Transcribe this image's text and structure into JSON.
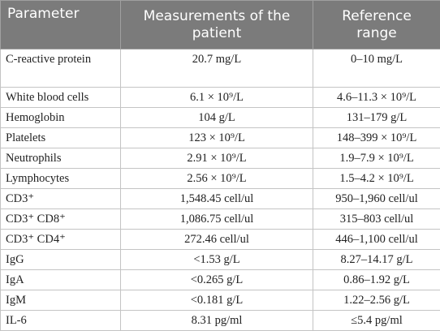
{
  "table": {
    "header": [
      "Parameter",
      "Measurements of the patient",
      "Reference range"
    ],
    "rows": [
      [
        "C-reactive protein",
        "20.7 mg/L",
        "0–10 mg/L"
      ],
      [
        "White blood cells",
        "6.1 × 10⁹/L",
        "4.6–11.3 × 10⁹/L"
      ],
      [
        "Hemoglobin",
        "104 g/L",
        "131–179 g/L"
      ],
      [
        "Platelets",
        "123 × 10⁹/L",
        "148–399 × 10⁹/L"
      ],
      [
        "Neutrophils",
        "2.91 × 10⁹/L",
        "1.9–7.9 × 10⁹/L"
      ],
      [
        "Lymphocytes",
        "2.56 × 10⁹/L",
        "1.5–4.2 × 10⁹/L"
      ],
      [
        "CD3⁺",
        "1,548.45 cell/ul",
        "950–1,960 cell/ul"
      ],
      [
        "CD3⁺ CD8⁺",
        "1,086.75 cell/ul",
        "315–803 cell/ul"
      ],
      [
        "CD3⁺ CD4⁺",
        "272.46 cell/ul",
        "446–1,100 cell/ul"
      ],
      [
        "IgG",
        "<1.53 g/L",
        "8.27–14.17 g/L"
      ],
      [
        "IgA",
        "<0.265 g/L",
        "0.86–1.92 g/L"
      ],
      [
        "IgM",
        "<0.181 g/L",
        "1.22–2.56 g/L"
      ],
      [
        "IL-6",
        "8.31 pg/ml",
        "≤5.4 pg/ml"
      ]
    ]
  }
}
